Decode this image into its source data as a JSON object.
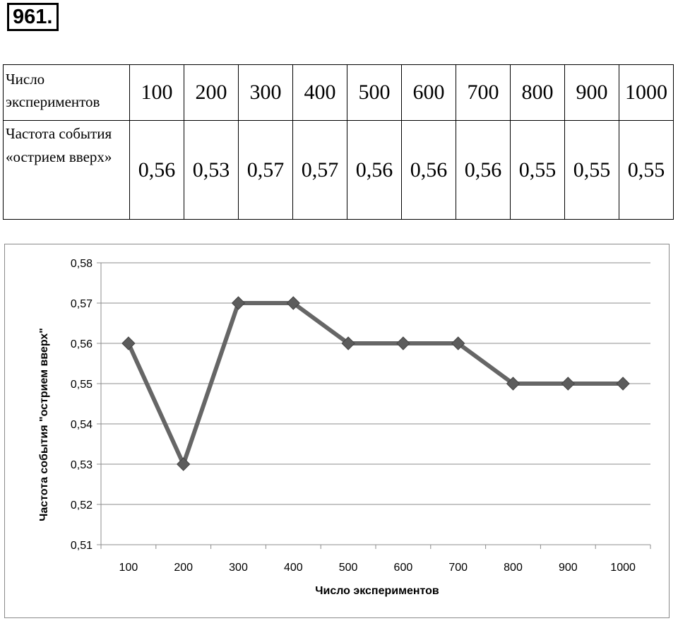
{
  "problem_number": "961.",
  "table": {
    "row1_label": "Число экспериментов",
    "row2_label": "Частота события «острием вверх»",
    "experiments": [
      "100",
      "200",
      "300",
      "400",
      "500",
      "600",
      "700",
      "800",
      "900",
      "1000"
    ],
    "frequencies": [
      "0,56",
      "0,53",
      "0,57",
      "0,57",
      "0,56",
      "0,56",
      "0,56",
      "0,55",
      "0,55",
      "0,55"
    ]
  },
  "chart_data": {
    "type": "line",
    "categories": [
      "100",
      "200",
      "300",
      "400",
      "500",
      "600",
      "700",
      "800",
      "900",
      "1000"
    ],
    "series": [
      {
        "values": [
          0.56,
          0.53,
          0.57,
          0.57,
          0.56,
          0.56,
          0.56,
          0.55,
          0.55,
          0.55
        ]
      }
    ],
    "y_ticks": [
      "0,51",
      "0,52",
      "0,53",
      "0,54",
      "0,55",
      "0,56",
      "0,57",
      "0,58"
    ],
    "ylim": [
      0.51,
      0.58
    ],
    "xlabel": "Число экспериментов",
    "ylabel": "Частота события \"острием вверх\"",
    "grid": true,
    "marker": "diamond",
    "line_color": "#666666"
  }
}
